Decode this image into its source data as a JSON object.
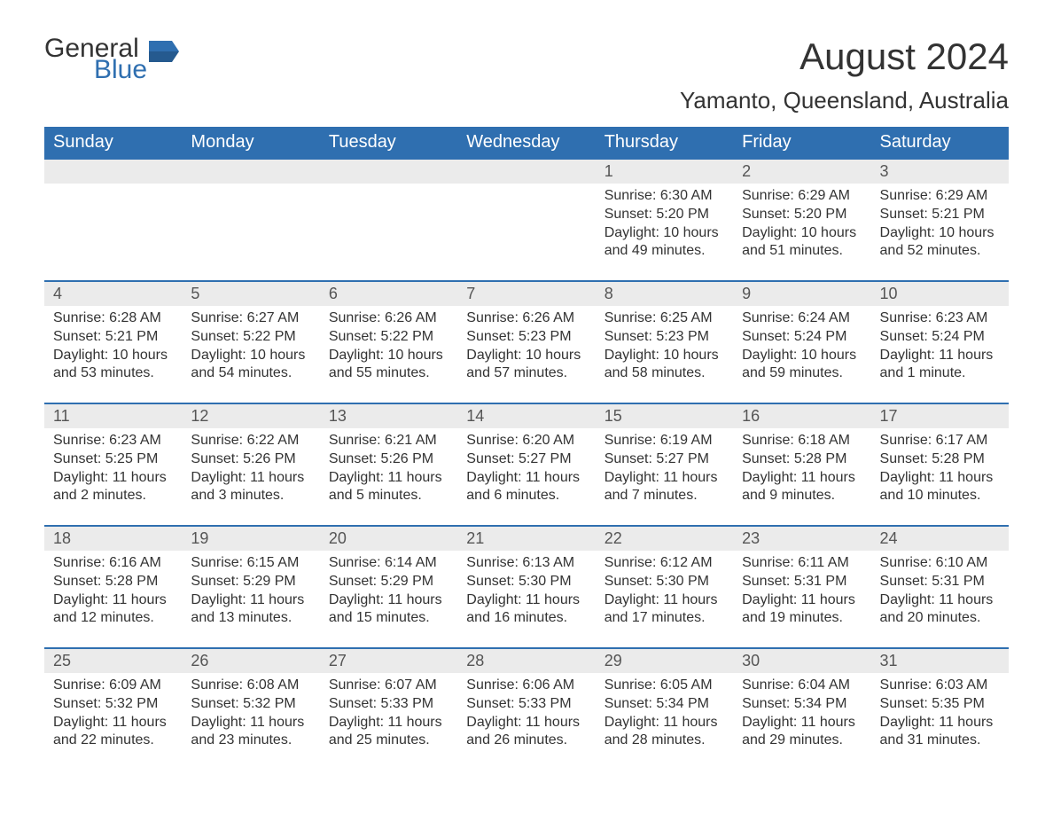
{
  "logo": {
    "general": "General",
    "blue": "Blue"
  },
  "title": "August 2024",
  "location": "Yamanto, Queensland, Australia",
  "colors": {
    "header_bg": "#2f6fb0",
    "header_text": "#ffffff",
    "daynum_bg": "#ebebeb",
    "border": "#2f6fb0",
    "body_text": "#333333",
    "logo_blue": "#2f6fb0"
  },
  "day_headers": [
    "Sunday",
    "Monday",
    "Tuesday",
    "Wednesday",
    "Thursday",
    "Friday",
    "Saturday"
  ],
  "weeks": [
    [
      {
        "n": "",
        "sunrise": "",
        "sunset": "",
        "daylight": ""
      },
      {
        "n": "",
        "sunrise": "",
        "sunset": "",
        "daylight": ""
      },
      {
        "n": "",
        "sunrise": "",
        "sunset": "",
        "daylight": ""
      },
      {
        "n": "",
        "sunrise": "",
        "sunset": "",
        "daylight": ""
      },
      {
        "n": "1",
        "sunrise": "Sunrise: 6:30 AM",
        "sunset": "Sunset: 5:20 PM",
        "daylight": "Daylight: 10 hours and 49 minutes."
      },
      {
        "n": "2",
        "sunrise": "Sunrise: 6:29 AM",
        "sunset": "Sunset: 5:20 PM",
        "daylight": "Daylight: 10 hours and 51 minutes."
      },
      {
        "n": "3",
        "sunrise": "Sunrise: 6:29 AM",
        "sunset": "Sunset: 5:21 PM",
        "daylight": "Daylight: 10 hours and 52 minutes."
      }
    ],
    [
      {
        "n": "4",
        "sunrise": "Sunrise: 6:28 AM",
        "sunset": "Sunset: 5:21 PM",
        "daylight": "Daylight: 10 hours and 53 minutes."
      },
      {
        "n": "5",
        "sunrise": "Sunrise: 6:27 AM",
        "sunset": "Sunset: 5:22 PM",
        "daylight": "Daylight: 10 hours and 54 minutes."
      },
      {
        "n": "6",
        "sunrise": "Sunrise: 6:26 AM",
        "sunset": "Sunset: 5:22 PM",
        "daylight": "Daylight: 10 hours and 55 minutes."
      },
      {
        "n": "7",
        "sunrise": "Sunrise: 6:26 AM",
        "sunset": "Sunset: 5:23 PM",
        "daylight": "Daylight: 10 hours and 57 minutes."
      },
      {
        "n": "8",
        "sunrise": "Sunrise: 6:25 AM",
        "sunset": "Sunset: 5:23 PM",
        "daylight": "Daylight: 10 hours and 58 minutes."
      },
      {
        "n": "9",
        "sunrise": "Sunrise: 6:24 AM",
        "sunset": "Sunset: 5:24 PM",
        "daylight": "Daylight: 10 hours and 59 minutes."
      },
      {
        "n": "10",
        "sunrise": "Sunrise: 6:23 AM",
        "sunset": "Sunset: 5:24 PM",
        "daylight": "Daylight: 11 hours and 1 minute."
      }
    ],
    [
      {
        "n": "11",
        "sunrise": "Sunrise: 6:23 AM",
        "sunset": "Sunset: 5:25 PM",
        "daylight": "Daylight: 11 hours and 2 minutes."
      },
      {
        "n": "12",
        "sunrise": "Sunrise: 6:22 AM",
        "sunset": "Sunset: 5:26 PM",
        "daylight": "Daylight: 11 hours and 3 minutes."
      },
      {
        "n": "13",
        "sunrise": "Sunrise: 6:21 AM",
        "sunset": "Sunset: 5:26 PM",
        "daylight": "Daylight: 11 hours and 5 minutes."
      },
      {
        "n": "14",
        "sunrise": "Sunrise: 6:20 AM",
        "sunset": "Sunset: 5:27 PM",
        "daylight": "Daylight: 11 hours and 6 minutes."
      },
      {
        "n": "15",
        "sunrise": "Sunrise: 6:19 AM",
        "sunset": "Sunset: 5:27 PM",
        "daylight": "Daylight: 11 hours and 7 minutes."
      },
      {
        "n": "16",
        "sunrise": "Sunrise: 6:18 AM",
        "sunset": "Sunset: 5:28 PM",
        "daylight": "Daylight: 11 hours and 9 minutes."
      },
      {
        "n": "17",
        "sunrise": "Sunrise: 6:17 AM",
        "sunset": "Sunset: 5:28 PM",
        "daylight": "Daylight: 11 hours and 10 minutes."
      }
    ],
    [
      {
        "n": "18",
        "sunrise": "Sunrise: 6:16 AM",
        "sunset": "Sunset: 5:28 PM",
        "daylight": "Daylight: 11 hours and 12 minutes."
      },
      {
        "n": "19",
        "sunrise": "Sunrise: 6:15 AM",
        "sunset": "Sunset: 5:29 PM",
        "daylight": "Daylight: 11 hours and 13 minutes."
      },
      {
        "n": "20",
        "sunrise": "Sunrise: 6:14 AM",
        "sunset": "Sunset: 5:29 PM",
        "daylight": "Daylight: 11 hours and 15 minutes."
      },
      {
        "n": "21",
        "sunrise": "Sunrise: 6:13 AM",
        "sunset": "Sunset: 5:30 PM",
        "daylight": "Daylight: 11 hours and 16 minutes."
      },
      {
        "n": "22",
        "sunrise": "Sunrise: 6:12 AM",
        "sunset": "Sunset: 5:30 PM",
        "daylight": "Daylight: 11 hours and 17 minutes."
      },
      {
        "n": "23",
        "sunrise": "Sunrise: 6:11 AM",
        "sunset": "Sunset: 5:31 PM",
        "daylight": "Daylight: 11 hours and 19 minutes."
      },
      {
        "n": "24",
        "sunrise": "Sunrise: 6:10 AM",
        "sunset": "Sunset: 5:31 PM",
        "daylight": "Daylight: 11 hours and 20 minutes."
      }
    ],
    [
      {
        "n": "25",
        "sunrise": "Sunrise: 6:09 AM",
        "sunset": "Sunset: 5:32 PM",
        "daylight": "Daylight: 11 hours and 22 minutes."
      },
      {
        "n": "26",
        "sunrise": "Sunrise: 6:08 AM",
        "sunset": "Sunset: 5:32 PM",
        "daylight": "Daylight: 11 hours and 23 minutes."
      },
      {
        "n": "27",
        "sunrise": "Sunrise: 6:07 AM",
        "sunset": "Sunset: 5:33 PM",
        "daylight": "Daylight: 11 hours and 25 minutes."
      },
      {
        "n": "28",
        "sunrise": "Sunrise: 6:06 AM",
        "sunset": "Sunset: 5:33 PM",
        "daylight": "Daylight: 11 hours and 26 minutes."
      },
      {
        "n": "29",
        "sunrise": "Sunrise: 6:05 AM",
        "sunset": "Sunset: 5:34 PM",
        "daylight": "Daylight: 11 hours and 28 minutes."
      },
      {
        "n": "30",
        "sunrise": "Sunrise: 6:04 AM",
        "sunset": "Sunset: 5:34 PM",
        "daylight": "Daylight: 11 hours and 29 minutes."
      },
      {
        "n": "31",
        "sunrise": "Sunrise: 6:03 AM",
        "sunset": "Sunset: 5:35 PM",
        "daylight": "Daylight: 11 hours and 31 minutes."
      }
    ]
  ]
}
